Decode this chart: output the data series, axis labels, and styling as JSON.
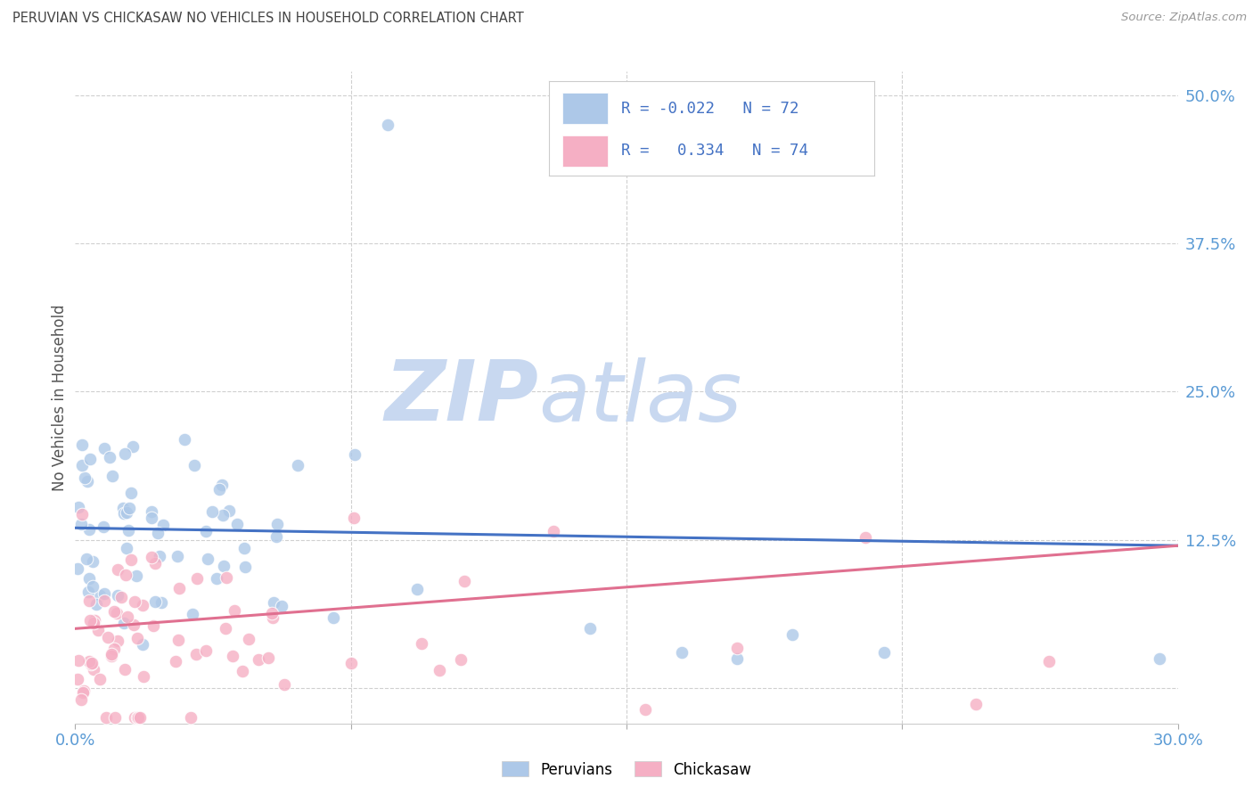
{
  "title": "PERUVIAN VS CHICKASAW NO VEHICLES IN HOUSEHOLD CORRELATION CHART",
  "source": "Source: ZipAtlas.com",
  "ylabel": "No Vehicles in Household",
  "xlim": [
    0.0,
    30.0
  ],
  "ylim": [
    -3.0,
    52.0
  ],
  "ytick_vals": [
    0.0,
    12.5,
    25.0,
    37.5,
    50.0
  ],
  "ytick_labels": [
    "",
    "12.5%",
    "25.0%",
    "37.5%",
    "50.0%"
  ],
  "xtick_vals": [
    0.0,
    7.5,
    15.0,
    22.5,
    30.0
  ],
  "xtick_labels": [
    "0.0%",
    "",
    "",
    "",
    "30.0%"
  ],
  "peruvian_color": "#adc8e8",
  "chickasaw_color": "#f5afc4",
  "line_peruvian_color": "#4472c4",
  "line_chickasaw_color": "#e07090",
  "watermark_main_color": "#c8d8f0",
  "watermark_atlas_color": "#c8d8f0",
  "title_color": "#444444",
  "source_color": "#999999",
  "axis_tick_color": "#5b9bd5",
  "ylabel_color": "#555555",
  "legend_text_color": "#4472c4",
  "grid_color": "#d0d0d0",
  "background_color": "#ffffff",
  "blue_line_y0": 13.5,
  "blue_line_y30": 12.0,
  "pink_line_y0": 5.0,
  "pink_line_y30": 12.0,
  "peruvian_seed": 101,
  "chickasaw_seed": 202
}
